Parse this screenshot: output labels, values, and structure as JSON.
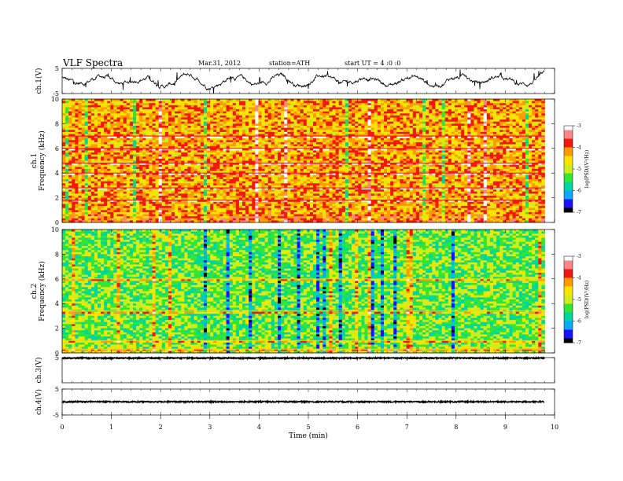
{
  "header": {
    "title": "VLF  Spectra",
    "date": "Mar.31, 2012",
    "station": "station=ATH",
    "start": "start  UT  =   4  :0  :0"
  },
  "chart_data": [
    {
      "type": "line",
      "name": "ch1-waveform",
      "ylabel": "ch.1(V)",
      "ylim": [
        -5,
        5
      ],
      "yticks": [
        "5",
        "-5"
      ],
      "xlim": [
        0,
        10
      ],
      "level": 0.3
    },
    {
      "type": "heatmap",
      "name": "ch1-spectrogram",
      "ylabel": "ch.1\nFrequency  (kHz)",
      "ylim": [
        0,
        10
      ],
      "yticks": [
        "10",
        "8",
        "6",
        "4",
        "2",
        "0"
      ],
      "xlim": [
        0,
        10
      ],
      "data_end_min": 9.8,
      "colorbar": {
        "label": "log(PSD/(V²/Hz)",
        "range": [
          -7,
          -3
        ],
        "ticks": [
          "-3",
          "-4",
          "-5",
          "-6",
          "-7"
        ]
      },
      "dominant_level": -4.3,
      "strong_bands_khz": [
        1.8,
        2.8,
        4.0,
        4.8,
        6.0,
        7.0
      ]
    },
    {
      "type": "heatmap",
      "name": "ch2-spectrogram",
      "ylabel": "ch.2\nFrequency  (kHz)",
      "ylim": [
        0,
        10
      ],
      "yticks": [
        "10",
        "8",
        "6",
        "4",
        "2",
        "0"
      ],
      "xlim": [
        0,
        10
      ],
      "data_end_min": 9.8,
      "colorbar": {
        "label": "log(PSD/(V²/Hz)",
        "range": [
          -7,
          -3
        ],
        "ticks": [
          "-3",
          "-4",
          "-5",
          "-6",
          "-7"
        ]
      },
      "dominant_level": -5.3,
      "strong_bands_khz": [
        0.3,
        1.0,
        3.4,
        6.0
      ]
    },
    {
      "type": "line",
      "name": "ch3-waveform",
      "ylabel": "ch.3(V)",
      "ylim": [
        -5,
        5
      ],
      "yticks": [
        "5"
      ],
      "xlim": [
        0,
        10
      ],
      "level": 4.8
    },
    {
      "type": "line",
      "name": "ch4-waveform",
      "ylabel": "ch.4(V)",
      "ylim": [
        -5,
        5
      ],
      "yticks": [
        "5",
        "-5"
      ],
      "xlim": [
        0,
        10
      ],
      "level": 0.1
    }
  ],
  "xaxis": {
    "label": "Time  (min)",
    "ticks": [
      "0",
      "1",
      "2",
      "3",
      "4",
      "5",
      "6",
      "7",
      "8",
      "9",
      "10"
    ]
  },
  "colors": {
    "colormap": [
      "#000000",
      "#1a12ff",
      "#0aa8ff",
      "#00d7a0",
      "#33e633",
      "#cdee1c",
      "#ffe300",
      "#ff9a00",
      "#f0190f",
      "#ff8686",
      "#ffffff"
    ]
  }
}
